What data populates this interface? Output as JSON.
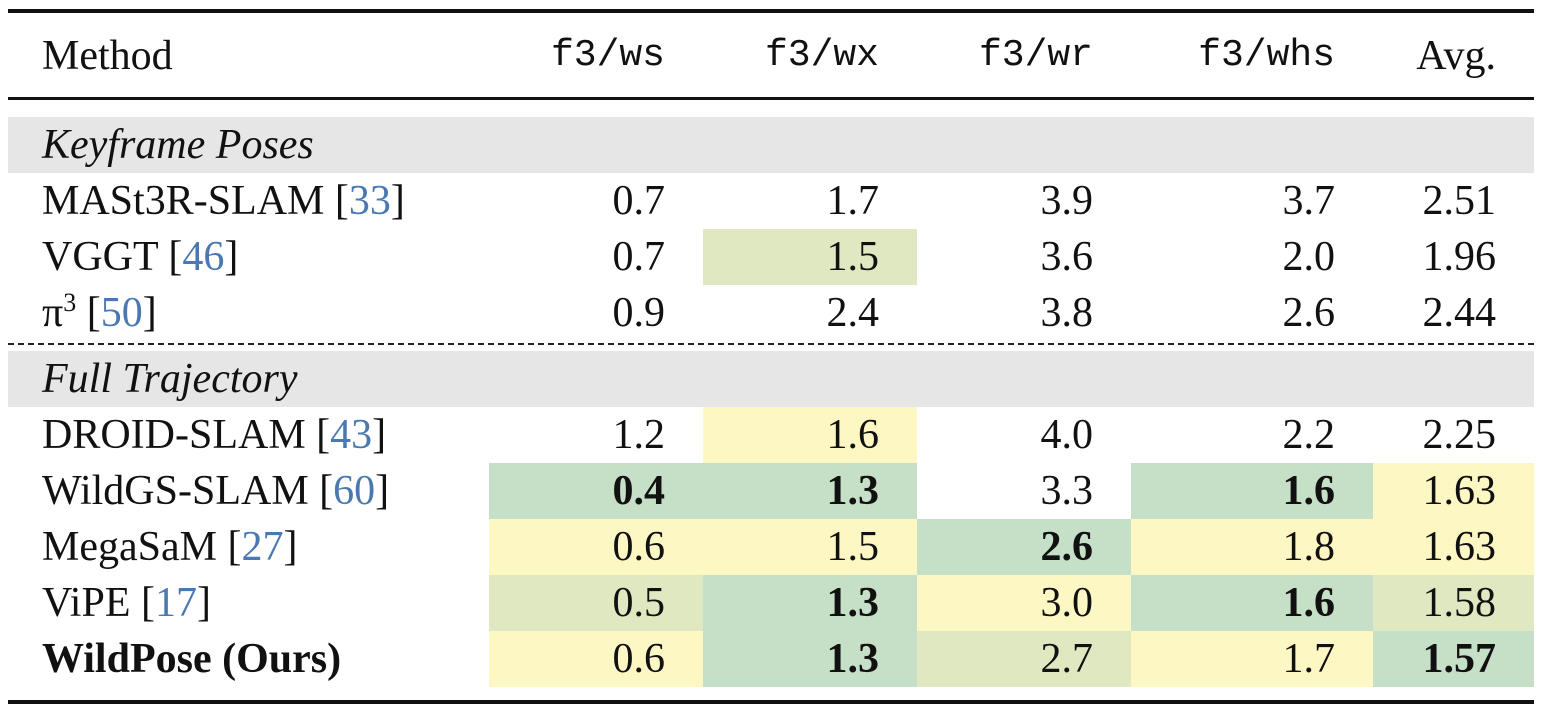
{
  "columns": [
    "Method",
    "f3/ws",
    "f3/wx",
    "f3/wr",
    "f3/whs",
    "Avg."
  ],
  "sections": [
    {
      "title": "Keyframe Poses",
      "rows": [
        {
          "method": "MASt3R-SLAM [",
          "ref": "33",
          "close": "]",
          "values": [
            "0.7",
            "1.7",
            "3.9",
            "3.7",
            "2.51"
          ]
        },
        {
          "method": "VGGT [",
          "ref": "46",
          "close": "]",
          "values": [
            "0.7",
            "1.5",
            "3.6",
            "2.0",
            "1.96"
          ]
        },
        {
          "method": "π",
          "sup": "3",
          "method_after": " [",
          "ref": "50",
          "close": "]",
          "values": [
            "0.9",
            "2.4",
            "3.8",
            "2.6",
            "2.44"
          ]
        }
      ]
    },
    {
      "title": "Full Trajectory",
      "rows": [
        {
          "method": "DROID-SLAM [",
          "ref": "43",
          "close": "]",
          "values": [
            "1.2",
            "1.6",
            "4.0",
            "2.2",
            "2.25"
          ]
        },
        {
          "method": "WildGS-SLAM [",
          "ref": "60",
          "close": "]",
          "values": [
            "0.4",
            "1.3",
            "3.3",
            "1.6",
            "1.63"
          ]
        },
        {
          "method": "MegaSaM [",
          "ref": "27",
          "close": "]",
          "values": [
            "0.6",
            "1.5",
            "2.6",
            "1.8",
            "1.63"
          ]
        },
        {
          "method": "ViPE [",
          "ref": "17",
          "close": "]",
          "values": [
            "0.5",
            "1.3",
            "3.0",
            "1.6",
            "1.58"
          ]
        },
        {
          "method": "WildPose (Ours)",
          "values": [
            "0.6",
            "1.3",
            "2.7",
            "1.7",
            "1.57"
          ]
        }
      ]
    }
  ],
  "highlight_colors": {
    "first": "#c6dfc7",
    "second": "#dfe8c1",
    "third": "#fdf7c4"
  }
}
